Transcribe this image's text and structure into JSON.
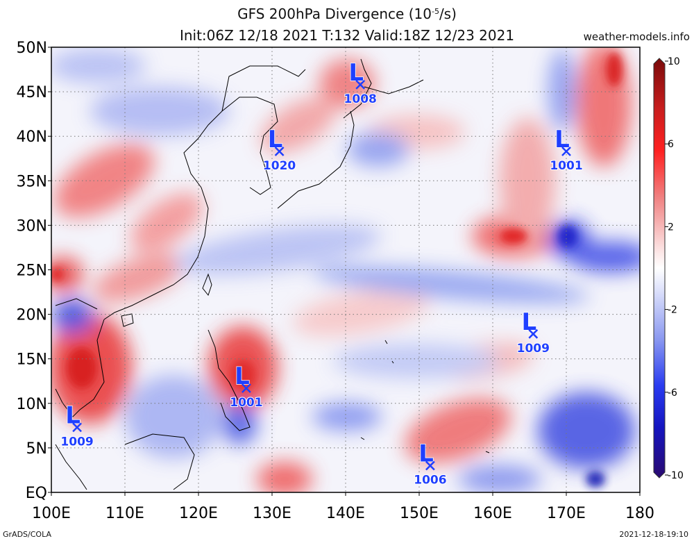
{
  "title": {
    "line1_prefix": "GFS 200hPa Divergence (10",
    "line1_exp": "-5",
    "line1_suffix": "/s)",
    "line2": "Init:06Z 12/18 2021 T:132 Valid:18Z 12/23 2021"
  },
  "website": "weather-models.info",
  "footer": {
    "left": "GrADS/COLA",
    "right": "2021-12-18-19:10"
  },
  "map": {
    "lon_range": [
      100,
      180
    ],
    "lat_range": [
      0,
      50
    ],
    "lon_ticks": [
      "100E",
      "110E",
      "120E",
      "130E",
      "140E",
      "150E",
      "160E",
      "170E",
      "180"
    ],
    "lat_ticks": [
      "EQ",
      "5N",
      "10N",
      "15N",
      "20N",
      "25N",
      "30N",
      "35N",
      "40N",
      "45N",
      "50N"
    ],
    "gridlines": true
  },
  "colorbar": {
    "range": [
      -10,
      10
    ],
    "tick_labels": [
      "10",
      "6",
      "2",
      "-2",
      "-6",
      "-10"
    ],
    "tick_values": [
      10,
      6,
      2,
      -2,
      -6,
      -10
    ],
    "colors": {
      "max": "#8b0000",
      "mid": "#ffffff",
      "min": "#1e0a78"
    }
  },
  "lows": [
    {
      "symbol": "L",
      "pressure": "1008",
      "lon": 142.0,
      "lat": 45.8
    },
    {
      "symbol": "L",
      "pressure": "1020",
      "lon": 131.0,
      "lat": 38.3
    },
    {
      "symbol": "L",
      "pressure": "1001",
      "lon": 170.0,
      "lat": 38.3
    },
    {
      "symbol": "L",
      "pressure": "1009",
      "lon": 165.5,
      "lat": 17.8
    },
    {
      "symbol": "L",
      "pressure": "1001",
      "lon": 126.5,
      "lat": 11.7
    },
    {
      "symbol": "L",
      "pressure": "1009",
      "lon": 103.5,
      "lat": 7.3
    },
    {
      "symbol": "L",
      "pressure": "1006",
      "lon": 151.5,
      "lat": 3.0
    }
  ],
  "colors": {
    "low_marker": "#1f3fff",
    "grid": "#777777"
  }
}
